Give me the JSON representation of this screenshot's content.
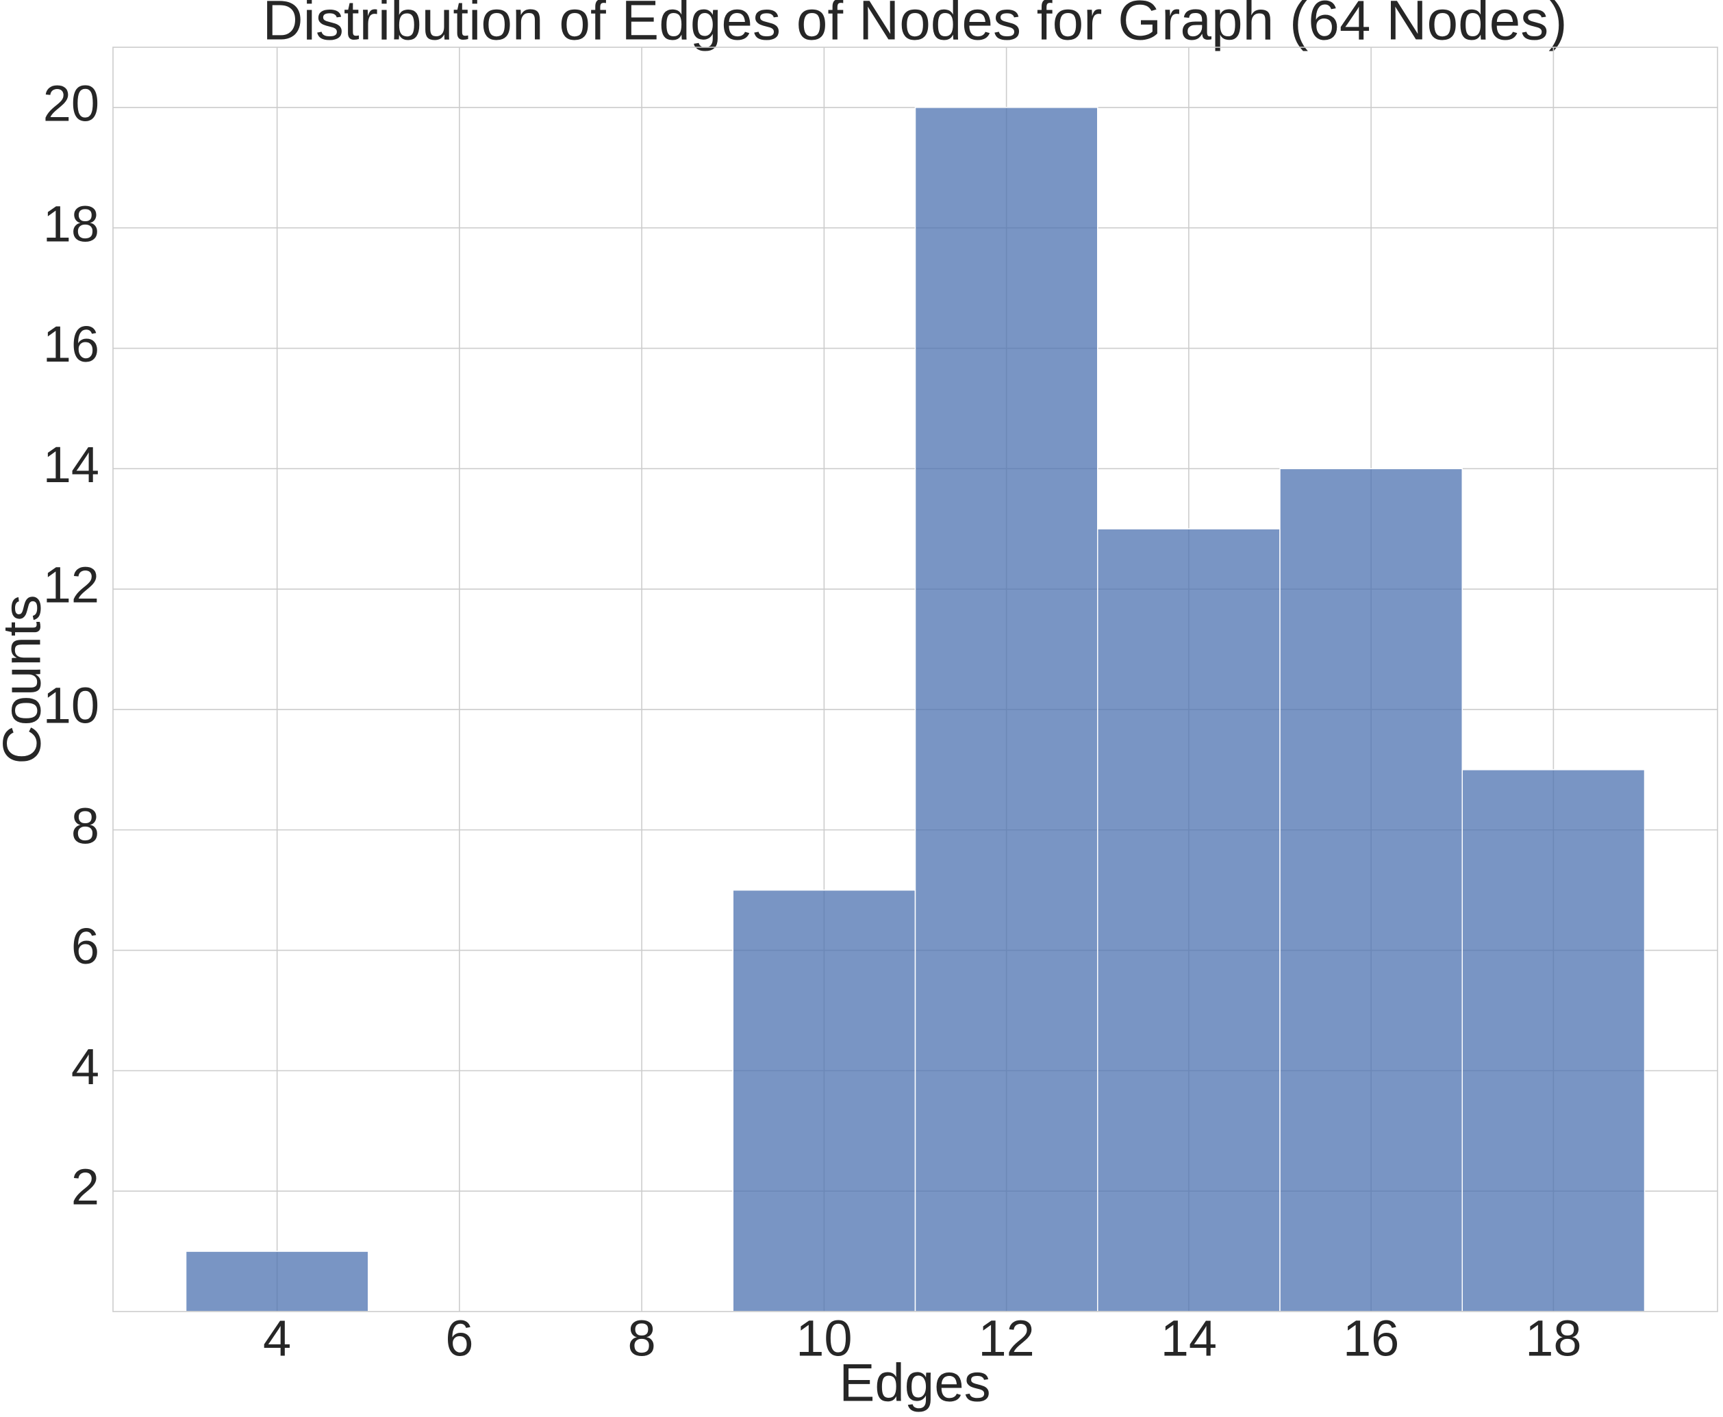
{
  "chart_data": {
    "type": "histogram",
    "title": "Distribution of Edges of Nodes for Graph (64 Nodes)",
    "x_label": "Edges",
    "y_label": "Counts",
    "bins": [
      3,
      5,
      7,
      9,
      11,
      13,
      15,
      17,
      19
    ],
    "values": [
      1,
      0,
      0,
      7,
      20,
      13,
      14,
      9
    ],
    "color": "#4c72b0",
    "xlim": [
      2.2,
      19.8
    ],
    "xticks": [
      4,
      6,
      8,
      10,
      12,
      14,
      16,
      18
    ],
    "ylim": [
      0,
      21
    ],
    "yticks": [
      2,
      4,
      6,
      8,
      10,
      12,
      14,
      16,
      18,
      20
    ],
    "grid": true
  }
}
